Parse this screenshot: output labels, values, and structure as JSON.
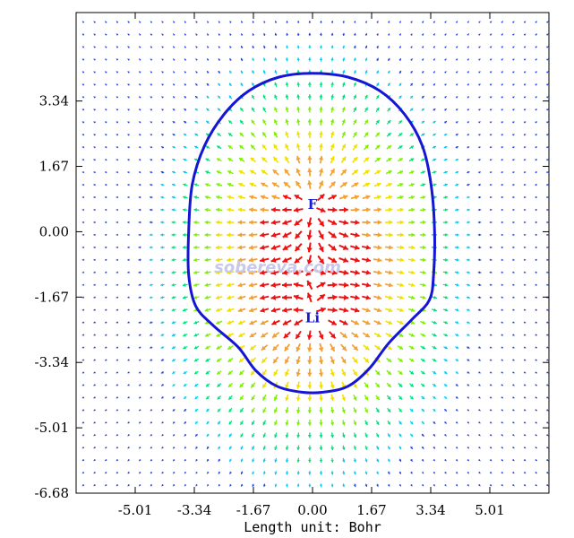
{
  "chart_data": {
    "type": "vector-field",
    "xlabel": "Length unit: Bohr",
    "ylabel": "",
    "xlim": [
      -6.68,
      6.68
    ],
    "ylim": [
      -6.68,
      5.6
    ],
    "x_ticks": [
      "-5.01",
      "-3.34",
      "-1.67",
      "0.00",
      "1.67",
      "3.34",
      "5.01"
    ],
    "y_ticks": [
      "3.34",
      "1.67",
      "0.00",
      "-1.67",
      "-3.34",
      "-5.01",
      "-6.68"
    ],
    "x_tick_values": [
      -5.01,
      -3.34,
      -1.67,
      0.0,
      1.67,
      3.34,
      5.01
    ],
    "y_tick_values": [
      3.34,
      1.67,
      0.0,
      -1.67,
      -3.34,
      -5.01,
      -6.68
    ],
    "atoms": [
      {
        "label": "F",
        "x": 0.0,
        "y": 0.7
      },
      {
        "label": "Li",
        "x": 0.0,
        "y": -2.2
      }
    ],
    "contour_color": "#1515d6",
    "arrow_colors": [
      "#1f3fe0",
      "#00c8f0",
      "#00e07a",
      "#7cf000",
      "#f0e000",
      "#f4a030",
      "#f01010"
    ],
    "watermark": "sobereva.com",
    "grid": false
  }
}
